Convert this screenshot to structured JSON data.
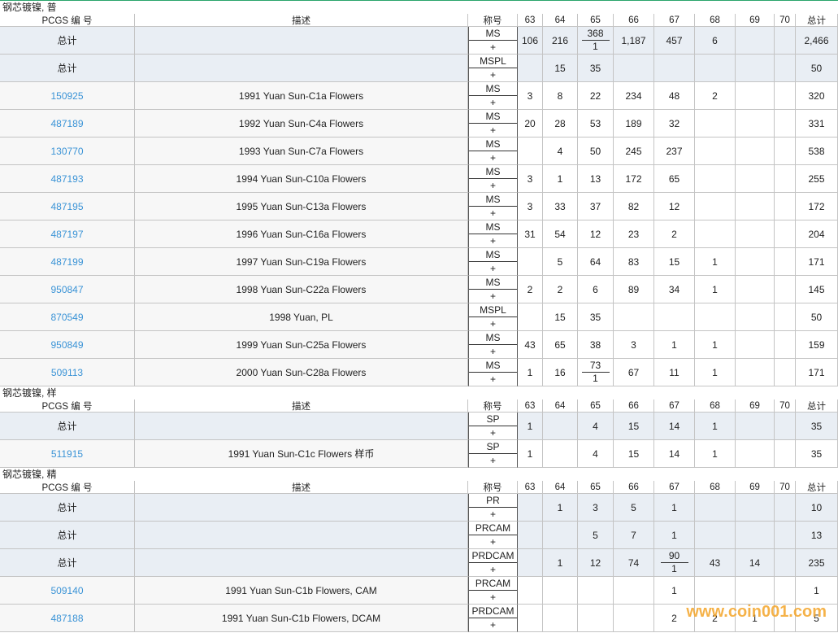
{
  "sections": [
    {
      "title": "钢芯镀镍, 普",
      "header": {
        "pcgs": "PCGS 编 号",
        "description": "描述",
        "designation": "称号",
        "grades": [
          "63",
          "64",
          "65",
          "66",
          "67",
          "68",
          "69",
          "70"
        ],
        "total": "总计"
      },
      "rows": [
        {
          "pcgs": "总计",
          "description": null,
          "designation": "MS",
          "plus": "+",
          "grades": [
            "106",
            "216",
            {
              "top": "368",
              "bottom": "1"
            },
            "1,187",
            "457",
            "6",
            null,
            null
          ],
          "total": "2,466"
        },
        {
          "pcgs": "总计",
          "description": null,
          "designation": "MSPL",
          "plus": "+",
          "grades": [
            null,
            "15",
            "35",
            null,
            null,
            null,
            null,
            null
          ],
          "total": "50"
        },
        {
          "pcgs": "150925",
          "description": "1991 Yuan Sun-C1a Flowers",
          "designation": "MS",
          "plus": "+",
          "grades": [
            "3",
            "8",
            "22",
            "234",
            "48",
            "2",
            null,
            null
          ],
          "total": "320"
        },
        {
          "pcgs": "487189",
          "description": "1992 Yuan Sun-C4a Flowers",
          "designation": "MS",
          "plus": "+",
          "grades": [
            "20",
            "28",
            "53",
            "189",
            "32",
            null,
            null,
            null
          ],
          "total": "331"
        },
        {
          "pcgs": "130770",
          "description": "1993 Yuan Sun-C7a Flowers",
          "designation": "MS",
          "plus": "+",
          "grades": [
            null,
            "4",
            "50",
            "245",
            "237",
            null,
            null,
            null
          ],
          "total": "538"
        },
        {
          "pcgs": "487193",
          "description": "1994 Yuan Sun-C10a Flowers",
          "designation": "MS",
          "plus": "+",
          "grades": [
            "3",
            "1",
            "13",
            "172",
            "65",
            null,
            null,
            null
          ],
          "total": "255"
        },
        {
          "pcgs": "487195",
          "description": "1995 Yuan Sun-C13a Flowers",
          "designation": "MS",
          "plus": "+",
          "grades": [
            "3",
            "33",
            "37",
            "82",
            "12",
            null,
            null,
            null
          ],
          "total": "172"
        },
        {
          "pcgs": "487197",
          "description": "1996 Yuan Sun-C16a Flowers",
          "designation": "MS",
          "plus": "+",
          "grades": [
            "31",
            "54",
            "12",
            "23",
            "2",
            null,
            null,
            null
          ],
          "total": "204"
        },
        {
          "pcgs": "487199",
          "description": "1997 Yuan Sun-C19a Flowers",
          "designation": "MS",
          "plus": "+",
          "grades": [
            null,
            "5",
            "64",
            "83",
            "15",
            "1",
            null,
            null
          ],
          "total": "171"
        },
        {
          "pcgs": "950847",
          "description": "1998 Yuan Sun-C22a Flowers",
          "designation": "MS",
          "plus": "+",
          "grades": [
            "2",
            "2",
            "6",
            "89",
            "34",
            "1",
            null,
            null
          ],
          "total": "145"
        },
        {
          "pcgs": "870549",
          "description": "1998 Yuan, PL",
          "designation": "MSPL",
          "plus": "+",
          "grades": [
            null,
            "15",
            "35",
            null,
            null,
            null,
            null,
            null
          ],
          "total": "50"
        },
        {
          "pcgs": "950849",
          "description": "1999 Yuan Sun-C25a Flowers",
          "designation": "MS",
          "plus": "+",
          "grades": [
            "43",
            "65",
            "38",
            "3",
            "1",
            "1",
            null,
            null
          ],
          "total": "159"
        },
        {
          "pcgs": "509113",
          "description": "2000 Yuan Sun-C28a Flowers",
          "designation": "MS",
          "plus": "+",
          "grades": [
            "1",
            "16",
            {
              "top": "73",
              "bottom": "1"
            },
            "67",
            "11",
            "1",
            null,
            null
          ],
          "total": "171"
        }
      ]
    },
    {
      "title": "钢芯镀镍, 样",
      "header": {
        "pcgs": "PCGS 编 号",
        "description": "描述",
        "designation": "称号",
        "grades": [
          "63",
          "64",
          "65",
          "66",
          "67",
          "68",
          "69",
          "70"
        ],
        "total": "总计"
      },
      "rows": [
        {
          "pcgs": "总计",
          "description": null,
          "designation": "SP",
          "plus": "+",
          "grades": [
            "1",
            null,
            "4",
            "15",
            "14",
            "1",
            null,
            null
          ],
          "total": "35"
        },
        {
          "pcgs": "511915",
          "description": "1991 Yuan Sun-C1c Flowers 样币",
          "designation": "SP",
          "plus": "+",
          "grades": [
            "1",
            null,
            "4",
            "15",
            "14",
            "1",
            null,
            null
          ],
          "total": "35"
        }
      ]
    },
    {
      "title": "钢芯镀镍, 精",
      "header": {
        "pcgs": "PCGS 编 号",
        "description": "描述",
        "designation": "称号",
        "grades": [
          "63",
          "64",
          "65",
          "66",
          "67",
          "68",
          "69",
          "70"
        ],
        "total": "总计"
      },
      "rows": [
        {
          "pcgs": "总计",
          "description": null,
          "designation": "PR",
          "plus": "+",
          "grades": [
            null,
            "1",
            "3",
            "5",
            "1",
            null,
            null,
            null
          ],
          "total": "10"
        },
        {
          "pcgs": "总计",
          "description": null,
          "designation": "PRCAM",
          "plus": "+",
          "grades": [
            null,
            null,
            "5",
            "7",
            "1",
            null,
            null,
            null
          ],
          "total": "13"
        },
        {
          "pcgs": "总计",
          "description": null,
          "designation": "PRDCAM",
          "plus": "+",
          "grades": [
            null,
            "1",
            "12",
            "74",
            {
              "top": "90",
              "bottom": "1"
            },
            "43",
            "14",
            null
          ],
          "total": "235"
        },
        {
          "pcgs": "509140",
          "description": "1991 Yuan Sun-C1b Flowers, CAM",
          "designation": "PRCAM",
          "plus": "+",
          "grades": [
            null,
            null,
            null,
            null,
            "1",
            null,
            null,
            null
          ],
          "total": "1"
        },
        {
          "pcgs": "487188",
          "description": "1991 Yuan Sun-C1b Flowers, DCAM",
          "designation": "PRDCAM",
          "plus": "+",
          "grades": [
            null,
            null,
            null,
            null,
            "2",
            "2",
            "1",
            null
          ],
          "total": "5"
        }
      ]
    }
  ],
  "watermark": "www.coin001.com"
}
